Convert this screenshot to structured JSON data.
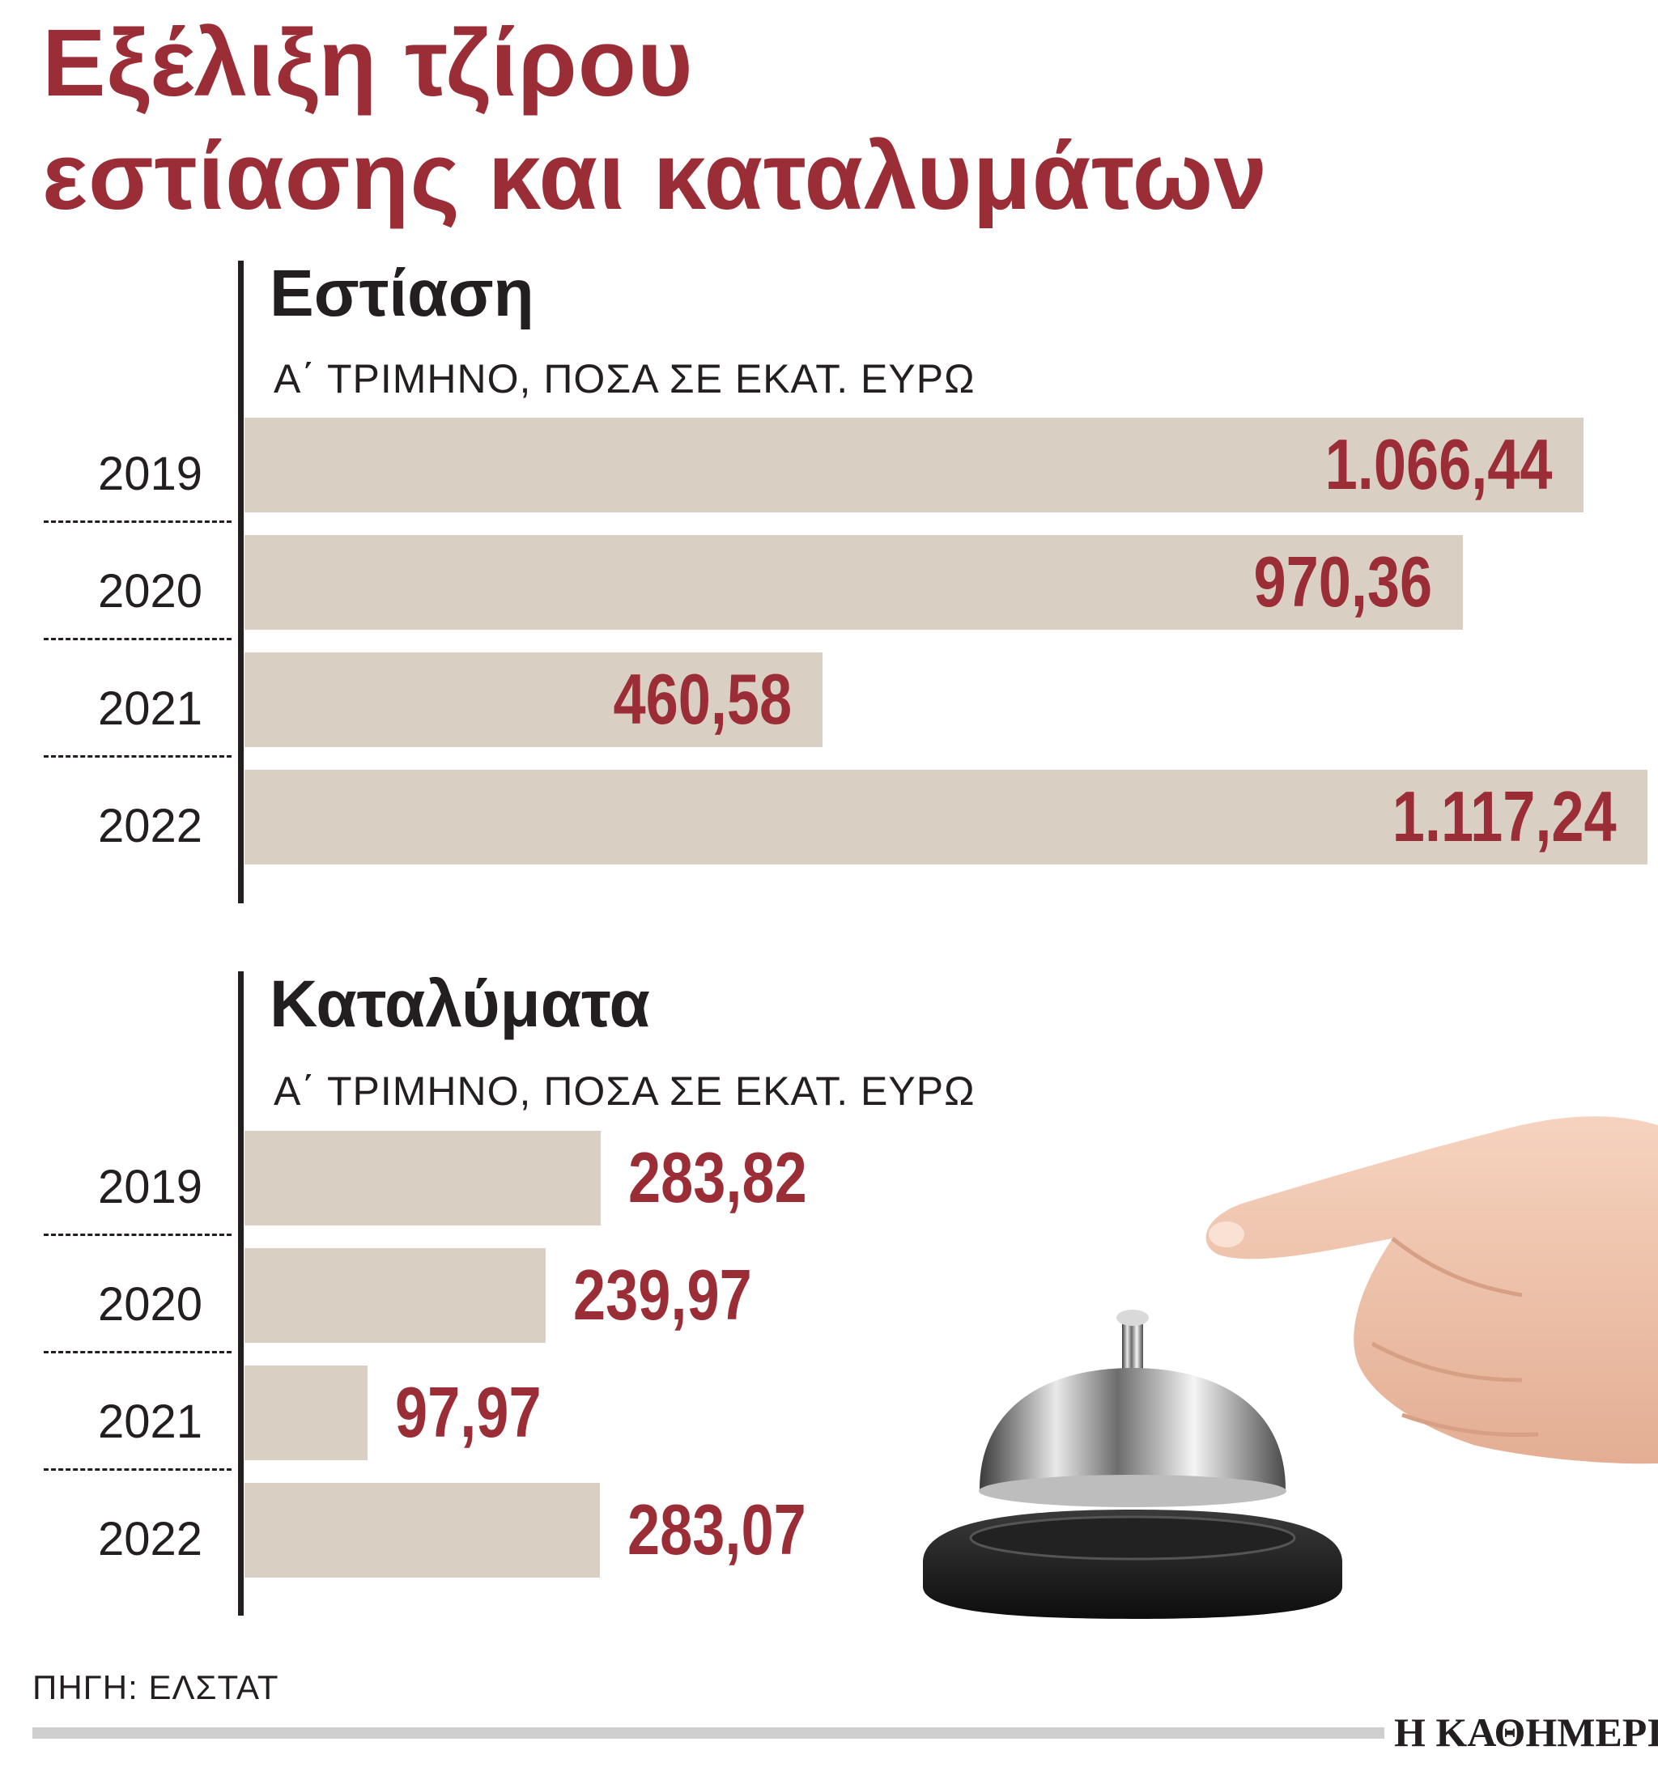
{
  "title_line1": "Εξέλιξη τζίρου",
  "title_line2": "εστίασης και καταλυμάτων",
  "source": "ΠΗΓΗ: ΕΛΣΤΑΤ",
  "logo": "Η ΚΑΘΗΜΕΡΙΝΗ",
  "colors": {
    "accent": "#9b2d36",
    "bar": "#dacfc3",
    "text": "#231f20"
  },
  "illustration": "hand-pressing-service-bell",
  "chart_data": [
    {
      "type": "bar",
      "orientation": "horizontal",
      "title": "Εστίαση",
      "subtitle": "Α΄ ΤΡΙΜΗΝΟ, ΠΟΣΑ ΣΕ ΕΚΑΤ. ΕΥΡΩ",
      "categories": [
        "2019",
        "2020",
        "2021",
        "2022"
      ],
      "values": [
        1066.44,
        970.36,
        460.58,
        1117.24
      ],
      "labels": [
        "1.066,44",
        "970,36",
        "460,58",
        "1.117,24"
      ],
      "label_position": "inside-end"
    },
    {
      "type": "bar",
      "orientation": "horizontal",
      "title": "Καταλύματα",
      "subtitle": "Α΄ ΤΡΙΜΗΝΟ, ΠΟΣΑ ΣΕ ΕΚΑΤ. ΕΥΡΩ",
      "categories": [
        "2019",
        "2020",
        "2021",
        "2022"
      ],
      "values": [
        283.82,
        239.97,
        97.97,
        283.07
      ],
      "labels": [
        "283,82",
        "239,97",
        "97,97",
        "283,07"
      ],
      "label_position": "outside-end"
    }
  ]
}
